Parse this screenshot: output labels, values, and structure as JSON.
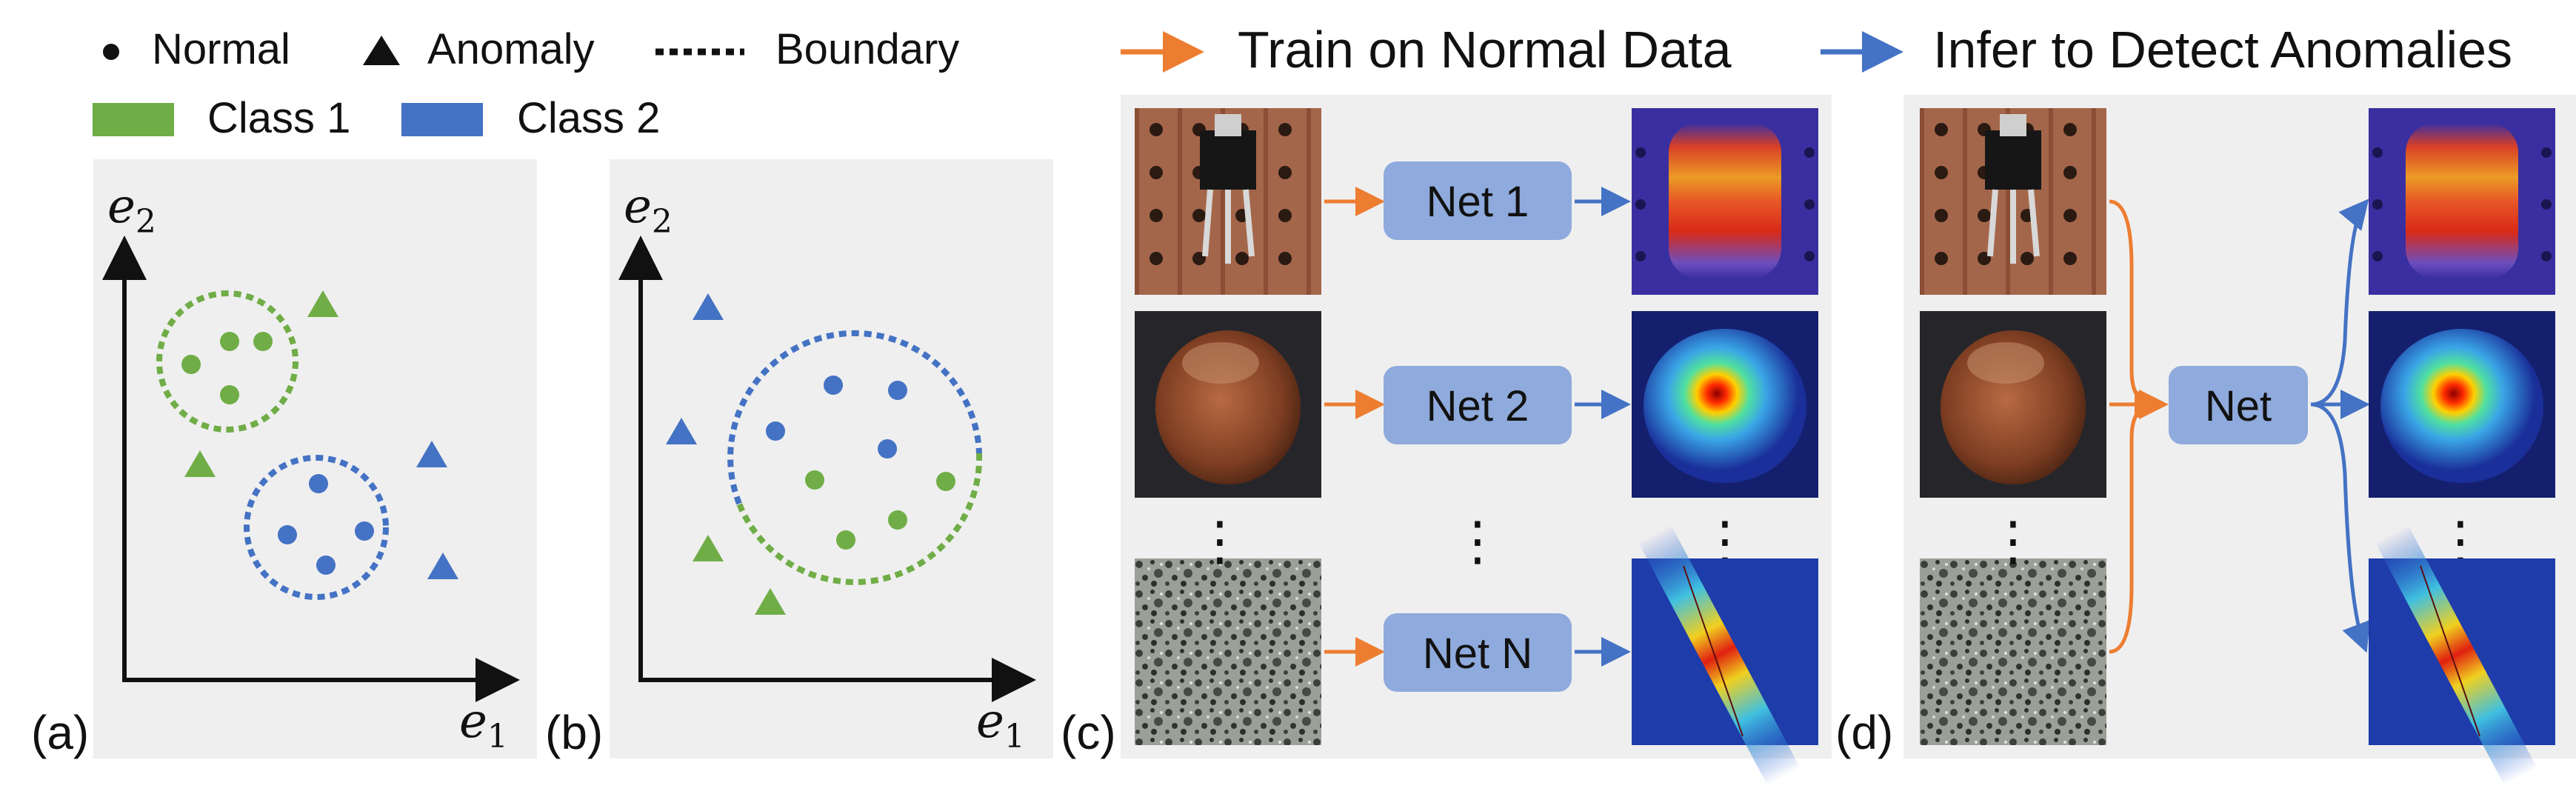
{
  "legend": {
    "normal": "Normal",
    "anomaly": "Anomaly",
    "boundary": "Boundary",
    "class1": "Class 1",
    "class2": "Class 2"
  },
  "colors": {
    "green": "#70ad47",
    "blue": "#4472c4",
    "orange": "#ed7d31",
    "panel_bg": "#efefef",
    "net_box": "#8faadc"
  },
  "panel_a": {
    "tag": "(a)",
    "x_axis": "e",
    "x_sub": "1",
    "y_axis": "e",
    "y_sub": "2"
  },
  "panel_b": {
    "tag": "(b)",
    "x_axis": "e",
    "x_sub": "1",
    "y_axis": "e",
    "y_sub": "2"
  },
  "panel_c": {
    "tag": "(c)",
    "title": "Train on Normal Data",
    "nets": [
      "Net 1",
      "Net 2",
      "Net N"
    ],
    "ellipsis": "⋮"
  },
  "panel_d": {
    "tag": "(d)",
    "title": "Infer to Detect Anomalies",
    "net": "Net",
    "ellipsis": "⋮"
  }
}
